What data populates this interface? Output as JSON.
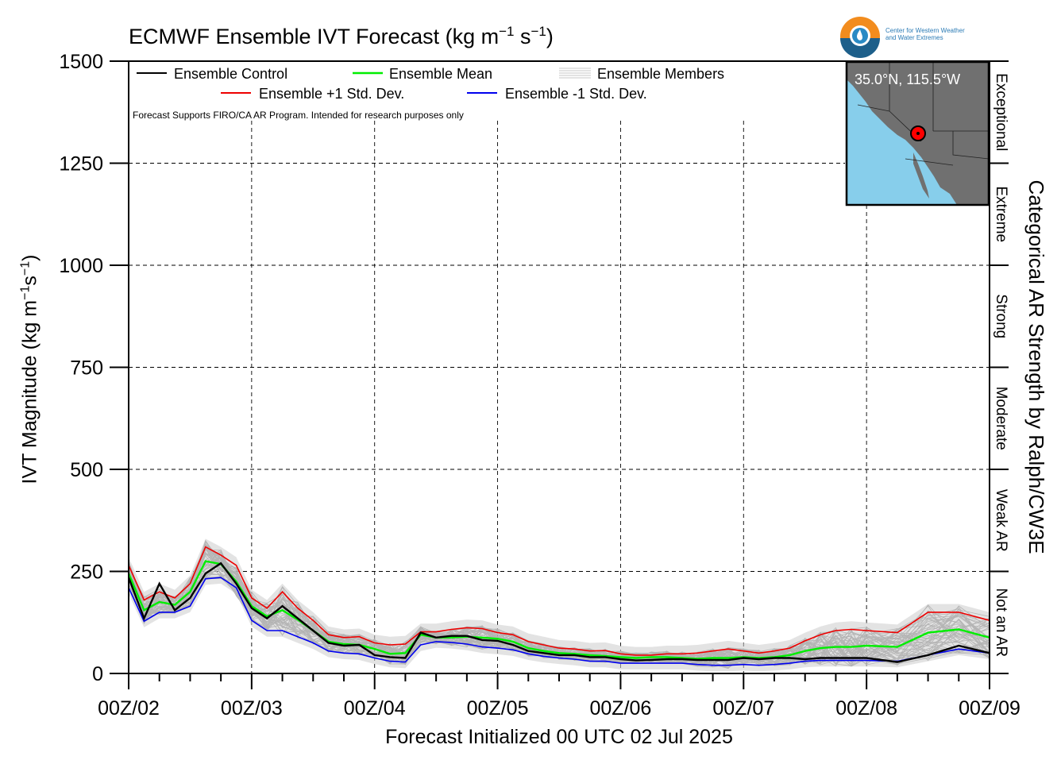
{
  "title_main": "ECMWF Ensemble IVT Forecast (kg m",
  "title_exp1": "−1",
  "title_mid": " s",
  "title_exp2": "−1",
  "title_end": ")",
  "ylabel_main": "IVT Magnitude (kg m",
  "ylabel_exp1": "−1",
  "ylabel_mid": "s",
  "ylabel_exp2": "−1",
  "ylabel_end": ")",
  "xlabel": "Forecast Initialized 00 UTC 02 Jul 2025",
  "right_axis_label": "Categorical AR Strength by Ralph/CW3E",
  "note": "Forecast Supports FIRO/CA AR Program. Intended for research purposes only",
  "logo_text": [
    "Center for Western Weather",
    "and Water Extremes"
  ],
  "inset": {
    "coord": "35.0°N, 115.5°W",
    "colors": {
      "ocean": "#87ceeb",
      "land": "#707070",
      "point": "#ff0000"
    }
  },
  "colors": {
    "control": "#000000",
    "mean": "#00ee00",
    "plus_std": "#ee0000",
    "minus_std": "#0000ee",
    "members": "#b4b4b4",
    "spread_fill": "#cccccc"
  },
  "chart_data": {
    "type": "line",
    "xlim": [
      0,
      168
    ],
    "ylim": [
      0,
      1500
    ],
    "y_ticks": [
      0,
      250,
      500,
      750,
      1000,
      1250,
      1500
    ],
    "x_tick_labels": [
      "00Z/02",
      "00Z/03",
      "00Z/04",
      "00Z/05",
      "00Z/06",
      "00Z/07",
      "00Z/08",
      "00Z/09"
    ],
    "x_tick_hours": [
      0,
      24,
      48,
      72,
      96,
      120,
      144,
      168
    ],
    "grid": true,
    "legend_position": "top-left",
    "ar_categories": [
      {
        "name": "Not an AR",
        "range": [
          0,
          250
        ]
      },
      {
        "name": "Weak AR",
        "range": [
          250,
          500
        ]
      },
      {
        "name": "Moderate",
        "range": [
          500,
          750
        ]
      },
      {
        "name": "Strong",
        "range": [
          750,
          1000
        ]
      },
      {
        "name": "Extreme",
        "range": [
          1000,
          1250
        ]
      },
      {
        "name": "Exceptional",
        "range": [
          1250,
          1500
        ]
      }
    ],
    "x": [
      0,
      3,
      6,
      9,
      12,
      15,
      18,
      21,
      24,
      27,
      30,
      33,
      36,
      39,
      42,
      45,
      48,
      51,
      54,
      57,
      60,
      63,
      66,
      69,
      72,
      75,
      78,
      81,
      84,
      87,
      90,
      93,
      96,
      99,
      102,
      105,
      108,
      111,
      114,
      117,
      120,
      123,
      126,
      129,
      132,
      135,
      138,
      141,
      144,
      150,
      156,
      162,
      168
    ],
    "series": [
      {
        "name": "Ensemble Control",
        "values": [
          235,
          135,
          220,
          155,
          185,
          245,
          270,
          220,
          160,
          135,
          165,
          135,
          105,
          75,
          68,
          70,
          45,
          40,
          38,
          100,
          88,
          92,
          92,
          82,
          80,
          70,
          55,
          50,
          45,
          45,
          40,
          40,
          35,
          32,
          33,
          35,
          35,
          33,
          33,
          33,
          38,
          35,
          38,
          38,
          35,
          38,
          38,
          38,
          38,
          28,
          45,
          68,
          50
        ]
      },
      {
        "name": "Ensemble Mean",
        "values": [
          245,
          155,
          175,
          168,
          200,
          275,
          268,
          225,
          165,
          140,
          155,
          132,
          105,
          78,
          72,
          70,
          60,
          48,
          50,
          95,
          88,
          88,
          90,
          88,
          85,
          78,
          62,
          55,
          50,
          48,
          45,
          43,
          40,
          38,
          40,
          40,
          38,
          36,
          38,
          38,
          40,
          38,
          40,
          45,
          55,
          62,
          65,
          65,
          68,
          65,
          100,
          108,
          88
        ]
      },
      {
        "name": "Ensemble +1 Std. Dev.",
        "values": [
          265,
          180,
          200,
          185,
          220,
          310,
          290,
          265,
          185,
          160,
          200,
          160,
          130,
          95,
          88,
          90,
          75,
          70,
          72,
          102,
          102,
          108,
          112,
          110,
          100,
          95,
          78,
          70,
          62,
          60,
          55,
          56,
          48,
          45,
          45,
          48,
          48,
          50,
          55,
          60,
          55,
          50,
          55,
          62,
          80,
          95,
          105,
          108,
          105,
          100,
          150,
          150,
          130
        ]
      },
      {
        "name": "Ensemble -1 Std. Dev.",
        "values": [
          210,
          128,
          150,
          150,
          165,
          232,
          235,
          210,
          130,
          105,
          105,
          90,
          75,
          55,
          50,
          48,
          38,
          30,
          28,
          70,
          78,
          76,
          72,
          65,
          62,
          58,
          48,
          42,
          38,
          35,
          30,
          30,
          25,
          25,
          25,
          25,
          25,
          22,
          20,
          20,
          22,
          20,
          22,
          25,
          30,
          32,
          32,
          32,
          32,
          30,
          45,
          60,
          50
        ]
      }
    ]
  }
}
